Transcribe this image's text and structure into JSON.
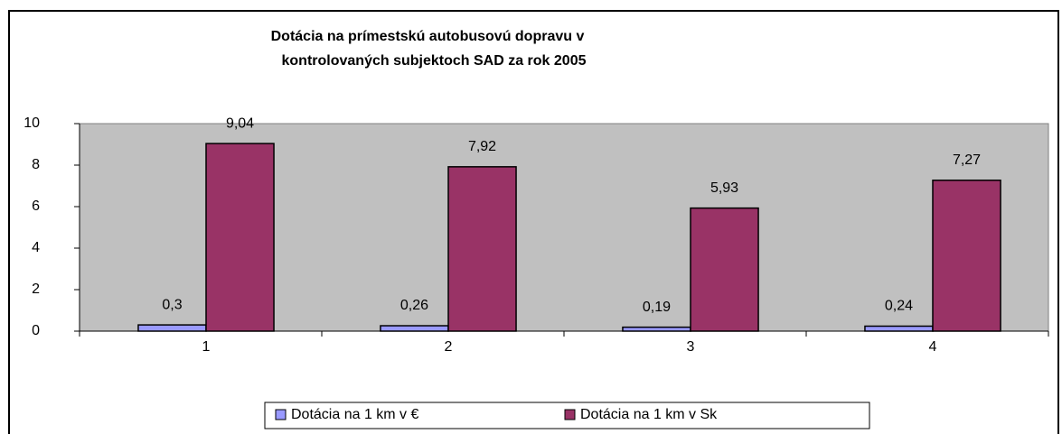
{
  "chart_data": {
    "type": "bar",
    "title": [
      "Dotácia na prímestskú autobusovú dopravu v",
      "kontrolovaných subjektoch SAD za rok 2005"
    ],
    "categories": [
      "1",
      "2",
      "3",
      "4"
    ],
    "series": [
      {
        "name": "Dotácia na 1 km v €",
        "color": "#9999ff",
        "values": [
          0.3,
          0.26,
          0.19,
          0.24
        ],
        "value_labels": [
          "0,3",
          "0,26",
          "0,19",
          "0,24"
        ]
      },
      {
        "name": "Dotácia na 1 km v Sk",
        "color": "#993366",
        "values": [
          9.04,
          7.92,
          5.93,
          7.27
        ],
        "value_labels": [
          "9,04",
          "7,92",
          "5,93",
          "7,27"
        ]
      }
    ],
    "ylim": [
      0,
      10
    ],
    "yticks": [
      0,
      2,
      4,
      6,
      8,
      10
    ],
    "plot_background": "#c0c0c0",
    "legend": "bottom"
  }
}
